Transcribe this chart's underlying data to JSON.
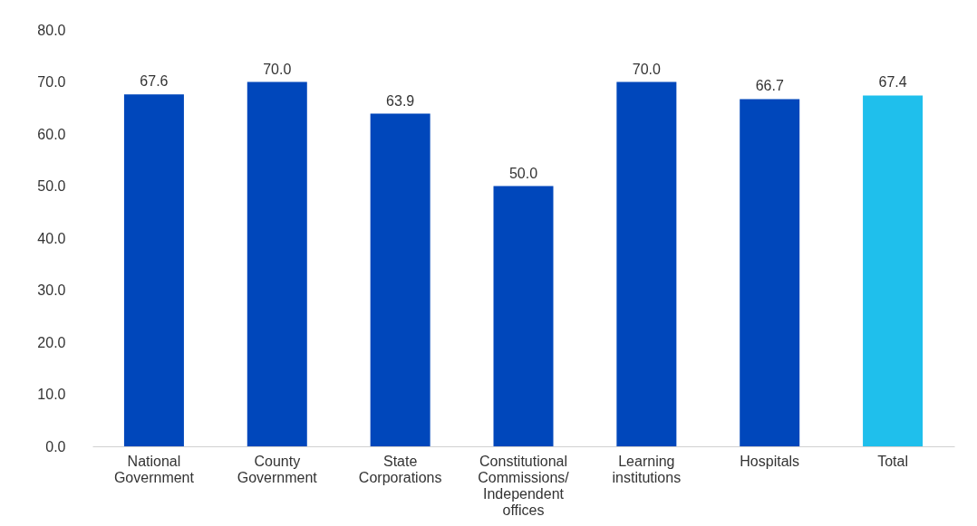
{
  "chart_data": {
    "type": "bar",
    "categories": [
      "National\nGovernment",
      "County\nGovernment",
      "State\nCorporations",
      "Constitutional\nCommissions/\nIndependent\noffices",
      "Learning\ninstitutions",
      "Hospitals",
      "Total"
    ],
    "values": [
      67.6,
      70.0,
      63.9,
      50.0,
      70.0,
      66.7,
      67.4
    ],
    "colors": [
      "#0047bb",
      "#0047bb",
      "#0047bb",
      "#0047bb",
      "#0047bb",
      "#0047bb",
      "#1fbfec"
    ],
    "ylim": [
      0,
      80
    ],
    "yticks": [
      {
        "value": 0,
        "label": "0.0"
      },
      {
        "value": 10,
        "label": "10.0"
      },
      {
        "value": 20,
        "label": "20.0"
      },
      {
        "value": 30,
        "label": "30.0"
      },
      {
        "value": 40,
        "label": "40.0"
      },
      {
        "value": 50,
        "label": "50.0"
      },
      {
        "value": 60,
        "label": "60.0"
      },
      {
        "value": 70,
        "label": "70.0"
      },
      {
        "value": 80,
        "label": "80.0"
      }
    ],
    "value_labels": [
      "67.6",
      "70.0",
      "63.9",
      "50.0",
      "70.0",
      "66.7",
      "67.4"
    ],
    "grid": false
  }
}
